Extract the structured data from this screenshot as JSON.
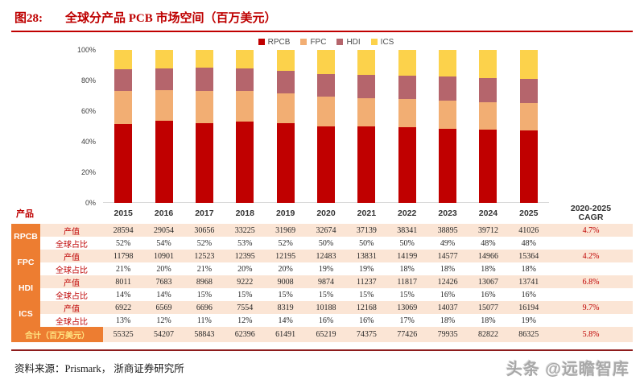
{
  "figure": {
    "label": "图28:",
    "title": "全球分产品 PCB 市场空间（百万美元）"
  },
  "colors": {
    "accent_red": "#c00000",
    "table_orange": "#ed7d31",
    "row_peach": "#fbe5d5",
    "total_label_yellow": "#ffe583",
    "footer_line": "#8e1c1c"
  },
  "chart_data": {
    "type": "bar",
    "stacked": true,
    "unit": "percent-of-total",
    "title": "全球分产品 PCB 市场空间（百万美元）",
    "xlabel": "",
    "ylabel": "",
    "ylim": [
      0,
      100
    ],
    "yticks": [
      "0%",
      "20%",
      "40%",
      "60%",
      "80%",
      "100%"
    ],
    "legend_position": "top",
    "grid": false,
    "categories": [
      "2015",
      "2016",
      "2017",
      "2018",
      "2019",
      "2020",
      "2021",
      "2022",
      "2023",
      "2024",
      "2025"
    ],
    "series": [
      {
        "name": "RPCB",
        "color": "#c00000",
        "values": [
          28594,
          29054,
          30656,
          33225,
          31969,
          32674,
          37139,
          38341,
          38895,
          39712,
          41026
        ]
      },
      {
        "name": "FPC",
        "color": "#f2ae73",
        "values": [
          11798,
          10901,
          12523,
          12395,
          12195,
          12483,
          13831,
          14199,
          14577,
          14966,
          15364
        ]
      },
      {
        "name": "HDI",
        "color": "#b5656c",
        "values": [
          8011,
          7683,
          8968,
          9222,
          9008,
          9874,
          11237,
          11817,
          12426,
          13067,
          13741
        ]
      },
      {
        "name": "ICS",
        "color": "#fcd24b",
        "values": [
          6922,
          6569,
          6696,
          7554,
          8319,
          10188,
          12168,
          13069,
          14037,
          15077,
          16194
        ]
      }
    ]
  },
  "table": {
    "product_header": "产品",
    "cagr_header": "2020-2025 CAGR",
    "years": [
      "2015",
      "2016",
      "2017",
      "2018",
      "2019",
      "2020",
      "2021",
      "2022",
      "2023",
      "2024",
      "2025"
    ],
    "groups": [
      {
        "product": "RPCB",
        "value_label": "产值",
        "share_label": "全球占比",
        "values": [
          "28594",
          "29054",
          "30656",
          "33225",
          "31969",
          "32674",
          "37139",
          "38341",
          "38895",
          "39712",
          "41026"
        ],
        "shares": [
          "52%",
          "54%",
          "52%",
          "53%",
          "52%",
          "50%",
          "50%",
          "50%",
          "49%",
          "48%",
          "48%"
        ],
        "cagr": "4.7%"
      },
      {
        "product": "FPC",
        "value_label": "产值",
        "share_label": "全球占比",
        "values": [
          "11798",
          "10901",
          "12523",
          "12395",
          "12195",
          "12483",
          "13831",
          "14199",
          "14577",
          "14966",
          "15364"
        ],
        "shares": [
          "21%",
          "20%",
          "21%",
          "20%",
          "20%",
          "19%",
          "19%",
          "18%",
          "18%",
          "18%",
          "18%"
        ],
        "cagr": "4.2%"
      },
      {
        "product": "HDI",
        "value_label": "产值",
        "share_label": "全球占比",
        "values": [
          "8011",
          "7683",
          "8968",
          "9222",
          "9008",
          "9874",
          "11237",
          "11817",
          "12426",
          "13067",
          "13741"
        ],
        "shares": [
          "14%",
          "14%",
          "15%",
          "15%",
          "15%",
          "15%",
          "15%",
          "15%",
          "16%",
          "16%",
          "16%"
        ],
        "cagr": "6.8%"
      },
      {
        "product": "ICS",
        "value_label": "产值",
        "share_label": "全球占比",
        "values": [
          "6922",
          "6569",
          "6696",
          "7554",
          "8319",
          "10188",
          "12168",
          "13069",
          "14037",
          "15077",
          "16194"
        ],
        "shares": [
          "13%",
          "12%",
          "11%",
          "12%",
          "14%",
          "16%",
          "16%",
          "17%",
          "18%",
          "18%",
          "19%"
        ],
        "cagr": "9.7%"
      }
    ],
    "total_row": {
      "label": "合计（百万美元）",
      "values": [
        "55325",
        "54207",
        "58843",
        "62396",
        "61491",
        "65219",
        "74375",
        "77426",
        "79935",
        "82822",
        "86325"
      ],
      "cagr": "5.8%"
    }
  },
  "footer": {
    "source": "资料来源：Prismark， 浙商证券研究所",
    "watermark": "头条 @远瞻智库"
  }
}
